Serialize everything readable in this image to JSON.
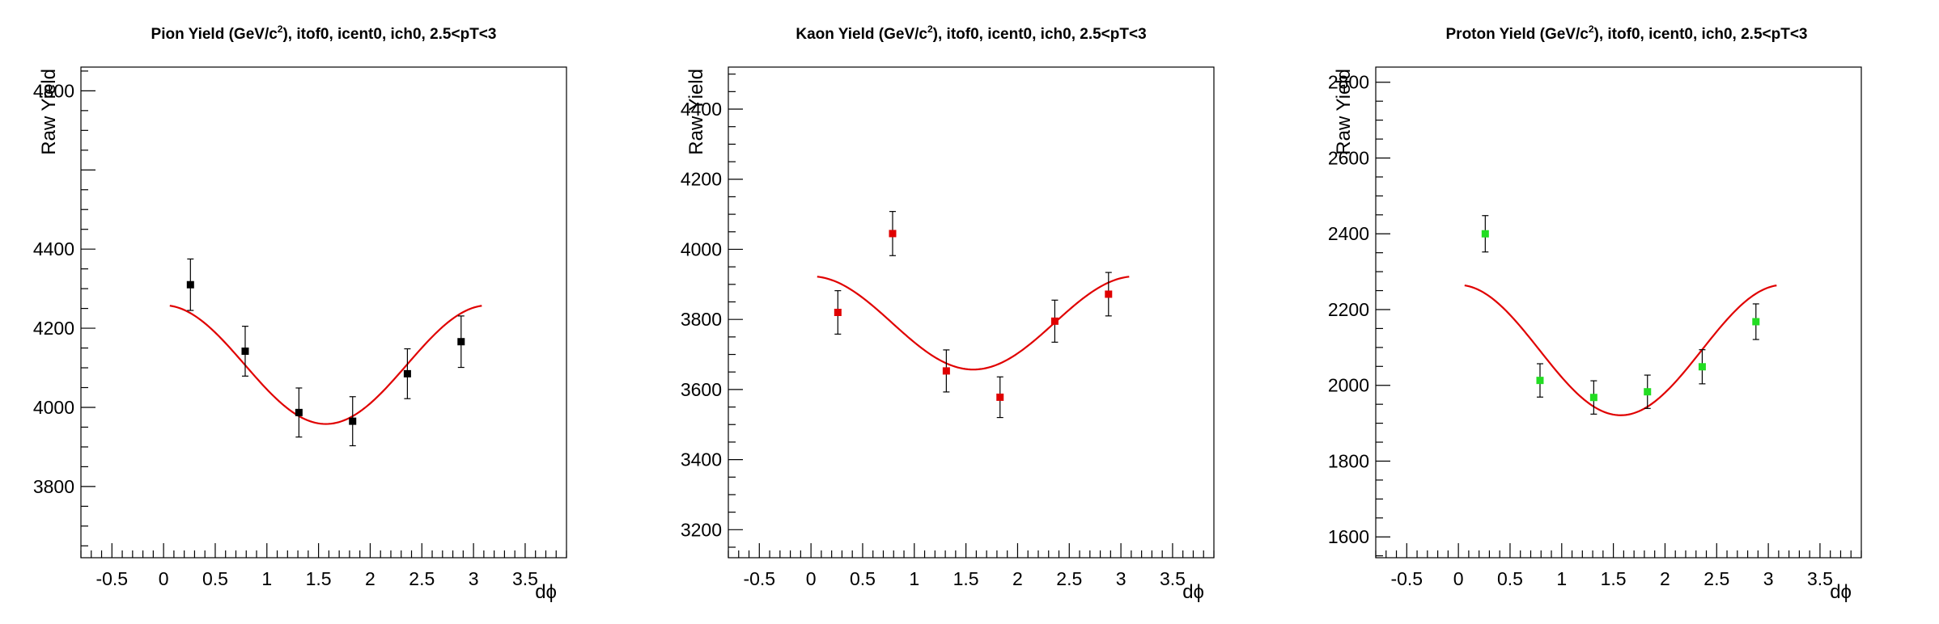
{
  "chart_data": [
    {
      "type": "scatter",
      "title": "Pion Yield (GeV/c^2), itof0, icent0, ich0, 2.5<pT<3",
      "title_main": "Pion Yield (GeV/c",
      "title_sup": "2",
      "title_rest": "), itof0, icent0, ich0, 2.5<pT<3",
      "xlabel": "dϕ",
      "ylabel": "Raw Yield",
      "xlim": [
        -0.8,
        3.9
      ],
      "ylim": [
        3620,
        4860
      ],
      "xticks": [
        "-0.5",
        "0",
        "0.5",
        "1",
        "1.5",
        "2",
        "2.5",
        "3",
        "3.5"
      ],
      "xtick_values": [
        -0.5,
        0,
        0.5,
        1,
        1.5,
        2,
        2.5,
        3,
        3.5
      ],
      "yticks": [
        "3800",
        "4000",
        "4200",
        "4400",
        "4800"
      ],
      "ytick_values": [
        3800,
        4000,
        4200,
        4400,
        4800
      ],
      "marker_color": "#000000",
      "fit_color": "#e00000",
      "series": [
        {
          "x": [
            0.26,
            0.79,
            1.31,
            1.83,
            2.36,
            2.88
          ],
          "y": [
            4310,
            4142,
            3987,
            3965,
            4085,
            4166
          ],
          "err": [
            65,
            63,
            62,
            62,
            63,
            65
          ]
        }
      ],
      "fit": {
        "x_range": [
          0.06,
          3.08
        ],
        "a": 4108,
        "b": 150,
        "period": 3.1416
      }
    },
    {
      "type": "scatter",
      "title": "Kaon Yield (GeV/c^2), itof0, icent0, ich0, 2.5<pT<3",
      "title_main": "Kaon Yield (GeV/c",
      "title_sup": "2",
      "title_rest": "), itof0, icent0, ich0, 2.5<pT<3",
      "xlabel": "dϕ",
      "ylabel": "Raw Yield",
      "xlim": [
        -0.8,
        3.9
      ],
      "ylim": [
        3120,
        4520
      ],
      "xticks": [
        "-0.5",
        "0",
        "0.5",
        "1",
        "1.5",
        "2",
        "2.5",
        "3",
        "3.5"
      ],
      "xtick_values": [
        -0.5,
        0,
        0.5,
        1,
        1.5,
        2,
        2.5,
        3,
        3.5
      ],
      "yticks": [
        "3200",
        "3400",
        "3600",
        "3800",
        "4000",
        "4200",
        "4400"
      ],
      "ytick_values": [
        3200,
        3400,
        3600,
        3800,
        4000,
        4200,
        4400
      ],
      "marker_color": "#e00000",
      "fit_color": "#e00000",
      "series": [
        {
          "x": [
            0.26,
            0.79,
            1.31,
            1.83,
            2.36,
            2.88
          ],
          "y": [
            3820,
            4045,
            3653,
            3578,
            3795,
            3872
          ],
          "err": [
            62,
            63,
            60,
            58,
            60,
            62
          ]
        }
      ],
      "fit": {
        "x_range": [
          0.06,
          3.08
        ],
        "a": 3790,
        "b": 133,
        "period": 3.1416
      }
    },
    {
      "type": "scatter",
      "title": "Proton Yield (GeV/c^2), itof0, icent0, ich0, 2.5<pT<3",
      "title_main": "Proton Yield (GeV/c",
      "title_sup": "2",
      "title_rest": "), itof0, icent0, ich0, 2.5<pT<3",
      "xlabel": "dϕ",
      "ylabel": "Raw Yield",
      "xlim": [
        -0.8,
        3.9
      ],
      "ylim": [
        1545,
        2840
      ],
      "xticks": [
        "-0.5",
        "0",
        "0.5",
        "1",
        "1.5",
        "2",
        "2.5",
        "3",
        "3.5"
      ],
      "xtick_values": [
        -0.5,
        0,
        0.5,
        1,
        1.5,
        2,
        2.5,
        3,
        3.5
      ],
      "yticks": [
        "1600",
        "1800",
        "2000",
        "2200",
        "2400",
        "2600",
        "2800"
      ],
      "ytick_values": [
        1600,
        1800,
        2000,
        2200,
        2400,
        2600,
        2800
      ],
      "marker_color": "#22dd22",
      "fit_color": "#e00000",
      "series": [
        {
          "x": [
            0.26,
            0.79,
            1.31,
            1.83,
            2.36,
            2.88
          ],
          "y": [
            2400,
            2013,
            1968,
            1983,
            2049,
            2168
          ],
          "err": [
            48,
            44,
            44,
            44,
            45,
            47
          ]
        }
      ],
      "fit": {
        "x_range": [
          0.06,
          3.08
        ],
        "a": 2093,
        "b": 172,
        "period": 3.1416
      }
    }
  ]
}
